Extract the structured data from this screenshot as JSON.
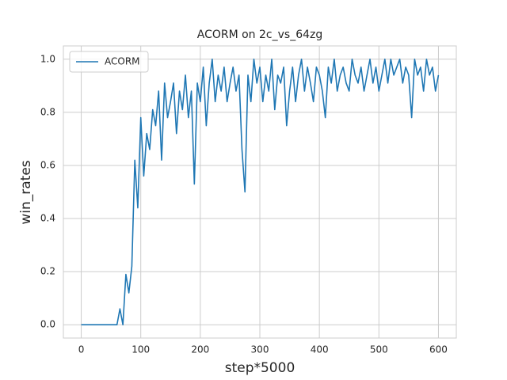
{
  "chart_data": {
    "type": "line",
    "title": "ACORM on 2c_vs_64zg",
    "xlabel": "step*5000",
    "ylabel": "win_rates",
    "x": [
      0,
      5,
      10,
      15,
      20,
      25,
      30,
      35,
      40,
      45,
      50,
      55,
      60,
      65,
      70,
      75,
      80,
      85,
      90,
      95,
      100,
      105,
      110,
      115,
      120,
      125,
      130,
      135,
      140,
      145,
      150,
      155,
      160,
      165,
      170,
      175,
      180,
      185,
      190,
      195,
      200,
      205,
      210,
      215,
      220,
      225,
      230,
      235,
      240,
      245,
      250,
      255,
      260,
      265,
      270,
      275,
      280,
      285,
      290,
      295,
      300,
      305,
      310,
      315,
      320,
      325,
      330,
      335,
      340,
      345,
      350,
      355,
      360,
      365,
      370,
      375,
      380,
      385,
      390,
      395,
      400,
      405,
      410,
      415,
      420,
      425,
      430,
      435,
      440,
      445,
      450,
      455,
      460,
      465,
      470,
      475,
      480,
      485,
      490,
      495,
      500,
      505,
      510,
      515,
      520,
      525,
      530,
      535,
      540,
      545,
      550,
      555,
      560,
      565,
      570,
      575,
      580,
      585,
      590,
      595,
      600
    ],
    "series": [
      {
        "name": "ACORM",
        "color": "#1f77b4",
        "values": [
          0,
          0,
          0,
          0,
          0,
          0,
          0,
          0,
          0,
          0,
          0,
          0,
          0,
          0.06,
          0.0,
          0.19,
          0.12,
          0.22,
          0.62,
          0.44,
          0.78,
          0.56,
          0.72,
          0.66,
          0.81,
          0.75,
          0.88,
          0.62,
          0.91,
          0.78,
          0.84,
          0.91,
          0.72,
          0.88,
          0.81,
          0.94,
          0.78,
          0.88,
          0.53,
          0.91,
          0.84,
          0.97,
          0.75,
          0.91,
          1.0,
          0.84,
          0.94,
          0.88,
          0.97,
          0.84,
          0.91,
          0.97,
          0.88,
          0.94,
          0.66,
          0.5,
          0.94,
          0.84,
          1.0,
          0.91,
          0.97,
          0.84,
          0.94,
          0.88,
          1.0,
          0.81,
          0.94,
          0.91,
          0.97,
          0.75,
          0.88,
          0.97,
          0.84,
          0.94,
          1.0,
          0.88,
          0.97,
          0.91,
          0.84,
          0.97,
          0.94,
          0.88,
          0.78,
          0.97,
          0.91,
          1.0,
          0.88,
          0.94,
          0.97,
          0.91,
          0.88,
          1.0,
          0.94,
          0.91,
          0.97,
          0.88,
          0.94,
          1.0,
          0.91,
          0.97,
          0.88,
          0.94,
          1.0,
          0.91,
          1.0,
          0.94,
          0.97,
          1.0,
          0.91,
          0.97,
          0.94,
          0.78,
          1.0,
          0.94,
          0.97,
          0.88,
          1.0,
          0.94,
          0.97,
          0.88,
          0.94
        ]
      }
    ],
    "xlim": [
      -30,
      630
    ],
    "ylim": [
      -0.05,
      1.05
    ],
    "xticks": [
      0,
      100,
      200,
      300,
      400,
      500,
      600
    ],
    "yticks": [
      {
        "value": 0,
        "label": "0.0"
      },
      {
        "value": 0.2,
        "label": "0.2"
      },
      {
        "value": 0.4,
        "label": "0.4"
      },
      {
        "value": 0.6,
        "label": "0.6"
      },
      {
        "value": 0.8,
        "label": "0.8"
      },
      {
        "value": 1,
        "label": "1.0"
      }
    ],
    "grid": true,
    "legend": "upper left"
  }
}
